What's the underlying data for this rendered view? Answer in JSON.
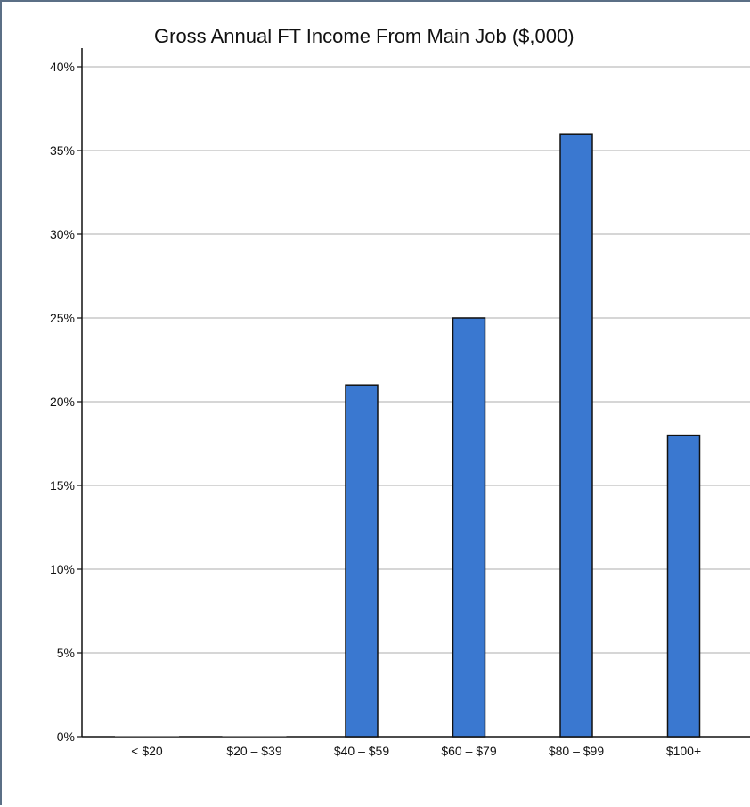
{
  "colors": {
    "bar": "#3a78d0",
    "grid": "#c8c8c8",
    "frame": "#5b6f86"
  },
  "chart_data": {
    "type": "bar",
    "title": "Gross Annual FT Income From Main Job ($,000)",
    "xlabel": "",
    "ylabel": "",
    "categories": [
      "< $20",
      "$20 – $39",
      "$40 – $59",
      "$60 – $79",
      "$80 – $99",
      "$100+"
    ],
    "values": [
      0,
      0,
      21,
      25,
      36,
      18
    ],
    "ylim": [
      0,
      40
    ],
    "yticks": [
      "0%",
      "5%",
      "10%",
      "15%",
      "20%",
      "25%",
      "30%",
      "35%",
      "40%"
    ],
    "grid": true,
    "legend": "none"
  }
}
